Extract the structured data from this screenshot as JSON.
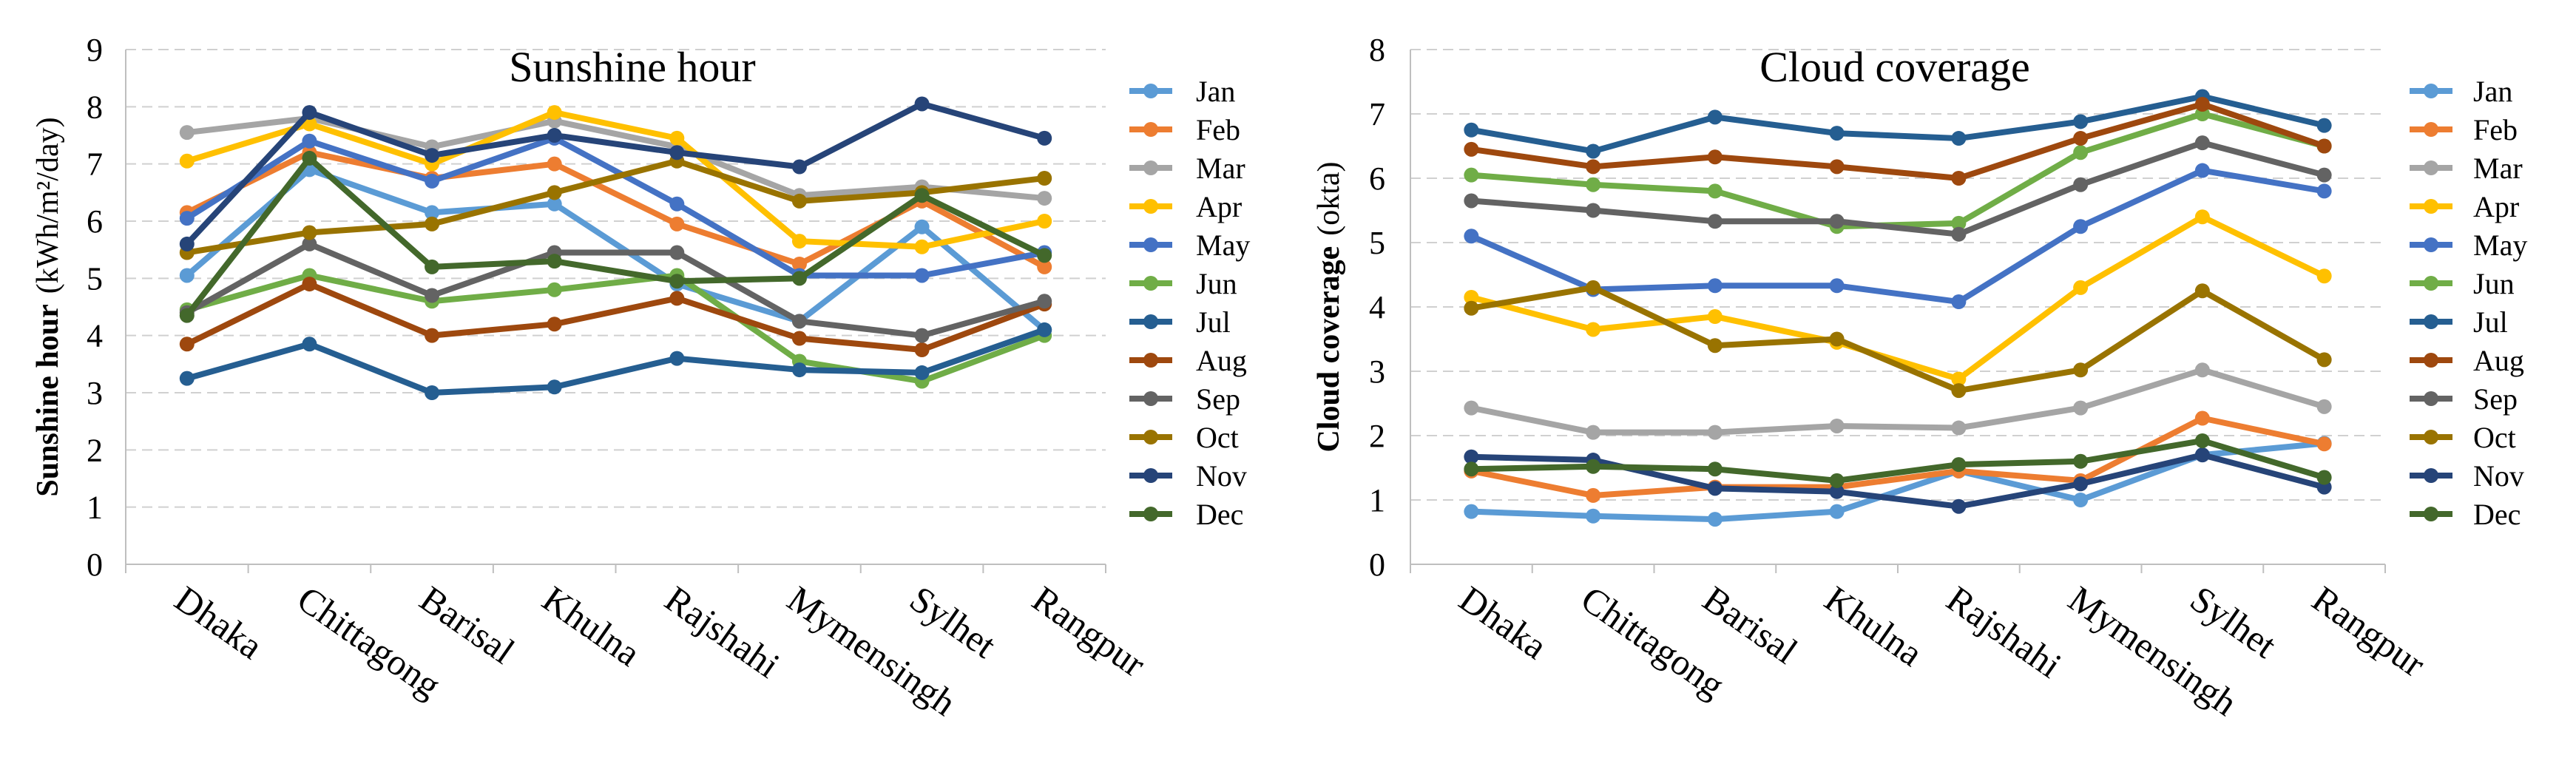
{
  "chart_data": [
    {
      "type": "line",
      "title": "Sunshine  hour",
      "ylabel_bold": "Sunshine  hour",
      "ylabel_unit": "(kWh/m²/day)",
      "xlabel": "",
      "ylim": [
        0,
        9
      ],
      "yticks": [
        "0",
        "1",
        "2",
        "3",
        "4",
        "5",
        "6",
        "7",
        "8",
        "9"
      ],
      "grid": true,
      "legend_position": "right",
      "categories": [
        "Dhaka",
        "Chittagong",
        "Barisal",
        "Khulna",
        "Rajshahi",
        "Mymensingh",
        "Sylhet",
        "Rangpur"
      ],
      "series": [
        {
          "name": "Jan",
          "color": "#5B9BD5",
          "values": [
            5.05,
            6.9,
            6.15,
            6.3,
            4.9,
            4.25,
            5.9,
            4.1
          ]
        },
        {
          "name": "Feb",
          "color": "#ED7D31",
          "values": [
            6.15,
            7.2,
            6.75,
            7.0,
            5.95,
            5.25,
            6.35,
            5.2
          ]
        },
        {
          "name": "Mar",
          "color": "#A5A5A5",
          "values": [
            7.55,
            7.8,
            7.3,
            7.75,
            7.3,
            6.45,
            6.6,
            6.4
          ]
        },
        {
          "name": "Apr",
          "color": "#FFC000",
          "values": [
            7.05,
            7.7,
            7.0,
            7.9,
            7.45,
            5.65,
            5.55,
            6.0
          ]
        },
        {
          "name": "May",
          "color": "#4472C4",
          "values": [
            6.05,
            7.4,
            6.7,
            7.45,
            6.3,
            5.05,
            5.05,
            5.45
          ]
        },
        {
          "name": "Jun",
          "color": "#70AD47",
          "values": [
            4.45,
            5.05,
            4.6,
            4.8,
            5.05,
            3.55,
            3.2,
            4.0
          ]
        },
        {
          "name": "Jul",
          "color": "#255E91",
          "values": [
            3.25,
            3.85,
            3.0,
            3.1,
            3.6,
            3.4,
            3.35,
            4.1
          ]
        },
        {
          "name": "Aug",
          "color": "#9E480E",
          "values": [
            3.85,
            4.9,
            4.0,
            4.2,
            4.65,
            3.95,
            3.75,
            4.55
          ]
        },
        {
          "name": "Sep",
          "color": "#636363",
          "values": [
            4.4,
            5.6,
            4.7,
            5.45,
            5.45,
            4.25,
            4.0,
            4.6
          ]
        },
        {
          "name": "Oct",
          "color": "#997300",
          "values": [
            5.45,
            5.8,
            5.95,
            6.5,
            7.05,
            6.35,
            6.5,
            6.75
          ]
        },
        {
          "name": "Nov",
          "color": "#264478",
          "values": [
            5.6,
            7.9,
            7.15,
            7.5,
            7.2,
            6.95,
            8.05,
            7.45
          ]
        },
        {
          "name": "Dec",
          "color": "#43682B",
          "values": [
            4.35,
            7.1,
            5.2,
            5.3,
            4.95,
            5.0,
            6.45,
            5.4
          ]
        }
      ]
    },
    {
      "type": "line",
      "title": "Cloud coverage",
      "ylabel_bold": "Cloud  coverage",
      "ylabel_unit": "(okta)",
      "xlabel": "",
      "ylim": [
        0,
        8
      ],
      "yticks": [
        "0",
        "1",
        "2",
        "3",
        "4",
        "5",
        "6",
        "7",
        "8"
      ],
      "grid": true,
      "legend_position": "right",
      "categories": [
        "Dhaka",
        "Chittagong",
        "Barisal",
        "Khulna",
        "Rajshahi",
        "Mymensingh",
        "Sylhet",
        "Rangpur"
      ],
      "series": [
        {
          "name": "Jan",
          "color": "#5B9BD5",
          "values": [
            0.82,
            0.75,
            0.7,
            0.82,
            1.45,
            1.0,
            1.7,
            1.88
          ]
        },
        {
          "name": "Feb",
          "color": "#ED7D31",
          "values": [
            1.45,
            1.07,
            1.2,
            1.2,
            1.45,
            1.3,
            2.27,
            1.87
          ]
        },
        {
          "name": "Mar",
          "color": "#A5A5A5",
          "values": [
            2.43,
            2.05,
            2.05,
            2.15,
            2.12,
            2.43,
            3.02,
            2.45
          ]
        },
        {
          "name": "Apr",
          "color": "#FFC000",
          "values": [
            4.15,
            3.65,
            3.85,
            3.45,
            2.88,
            4.3,
            5.4,
            4.48
          ]
        },
        {
          "name": "May",
          "color": "#4472C4",
          "values": [
            5.1,
            4.27,
            4.33,
            4.33,
            4.08,
            5.25,
            6.12,
            5.8
          ]
        },
        {
          "name": "Jun",
          "color": "#70AD47",
          "values": [
            6.05,
            5.9,
            5.8,
            5.25,
            5.3,
            6.4,
            7.0,
            6.5
          ]
        },
        {
          "name": "Jul",
          "color": "#255E91",
          "values": [
            6.75,
            6.42,
            6.95,
            6.7,
            6.62,
            6.88,
            7.27,
            6.82
          ]
        },
        {
          "name": "Aug",
          "color": "#9E480E",
          "values": [
            6.45,
            6.18,
            6.33,
            6.18,
            6.0,
            6.62,
            7.15,
            6.5
          ]
        },
        {
          "name": "Sep",
          "color": "#636363",
          "values": [
            5.65,
            5.5,
            5.33,
            5.33,
            5.13,
            5.9,
            6.55,
            6.05
          ]
        },
        {
          "name": "Oct",
          "color": "#997300",
          "values": [
            3.98,
            4.3,
            3.4,
            3.5,
            2.7,
            3.02,
            4.25,
            3.18
          ]
        },
        {
          "name": "Nov",
          "color": "#264478",
          "values": [
            1.67,
            1.62,
            1.18,
            1.13,
            0.9,
            1.25,
            1.7,
            1.2
          ]
        },
        {
          "name": "Dec",
          "color": "#43682B",
          "values": [
            1.48,
            1.52,
            1.48,
            1.3,
            1.55,
            1.6,
            1.92,
            1.35
          ]
        }
      ]
    }
  ]
}
